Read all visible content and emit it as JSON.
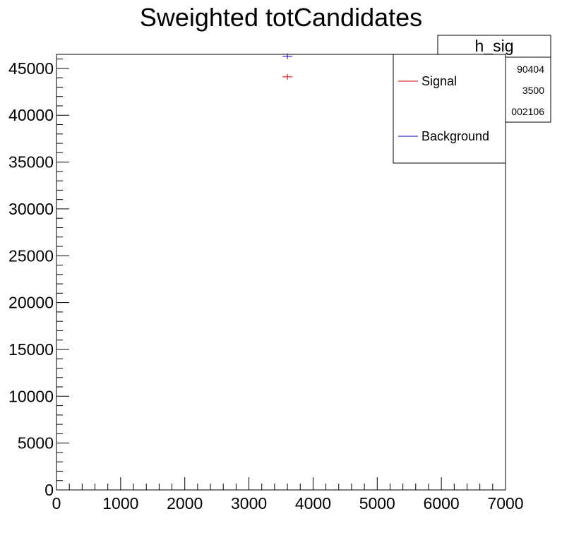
{
  "chart_data": {
    "type": "scatter",
    "title": "Sweighted totCandidates",
    "xlabel": "",
    "ylabel": "",
    "xlim": [
      0,
      7000
    ],
    "ylim": [
      0,
      46500
    ],
    "x_ticks": [
      0,
      1000,
      2000,
      3000,
      4000,
      5000,
      6000,
      7000
    ],
    "y_ticks": [
      0,
      5000,
      10000,
      15000,
      20000,
      25000,
      30000,
      35000,
      40000,
      45000
    ],
    "x_tick_labels": [
      "0",
      "1000",
      "2000",
      "3000",
      "4000",
      "5000",
      "6000",
      "7000"
    ],
    "y_tick_labels": [
      "0",
      "5000",
      "10000",
      "15000",
      "20000",
      "25000",
      "30000",
      "35000",
      "40000",
      "45000"
    ],
    "grid": false,
    "series": [
      {
        "name": "Signal",
        "color": "#cc0000",
        "points": [
          {
            "x": 3600,
            "y": 44100
          }
        ]
      },
      {
        "name": "Background",
        "color": "#0000cc",
        "points": [
          {
            "x": 3600,
            "y": 46300
          }
        ]
      }
    ],
    "stats_box": {
      "title": "h_sig",
      "values": [
        "90404",
        "3500",
        "002106"
      ]
    },
    "legend": {
      "placement": "top-right",
      "entries": [
        {
          "label": "Signal",
          "color": "#cc0000"
        },
        {
          "label": "Background",
          "color": "#0000cc"
        }
      ]
    }
  }
}
